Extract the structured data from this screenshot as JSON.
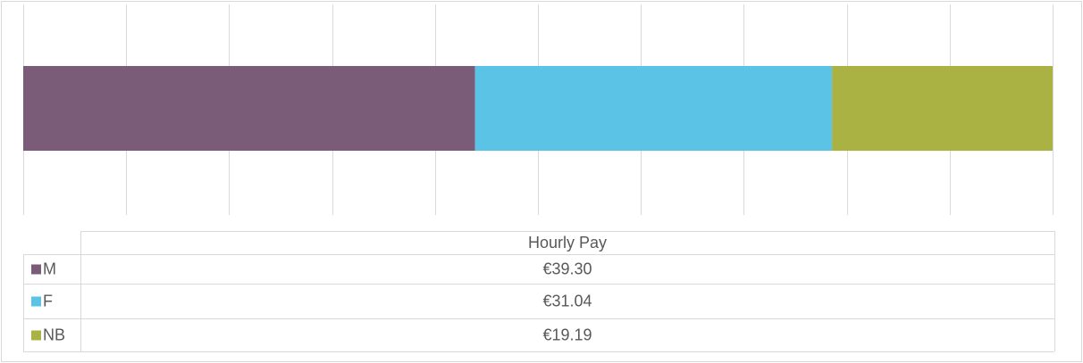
{
  "chart_data": {
    "type": "bar",
    "orientation": "horizontal",
    "stacked": "percent",
    "categories": [
      "Hourly Pay"
    ],
    "series": [
      {
        "name": "M",
        "color": "#7b5c78",
        "values": [
          39.3
        ],
        "value_labels": [
          "€39.30"
        ]
      },
      {
        "name": "F",
        "color": "#5bc4e6",
        "values": [
          31.04
        ],
        "value_labels": [
          "€31.04"
        ]
      },
      {
        "name": "NB",
        "color": "#a9b243",
        "values": [
          19.19
        ],
        "value_labels": [
          "€19.19"
        ]
      }
    ],
    "xlim": [
      0,
      100
    ],
    "xticks": [
      0,
      10,
      20,
      30,
      40,
      50,
      60,
      70,
      80,
      90,
      100
    ],
    "grid": true,
    "data_table": true
  }
}
